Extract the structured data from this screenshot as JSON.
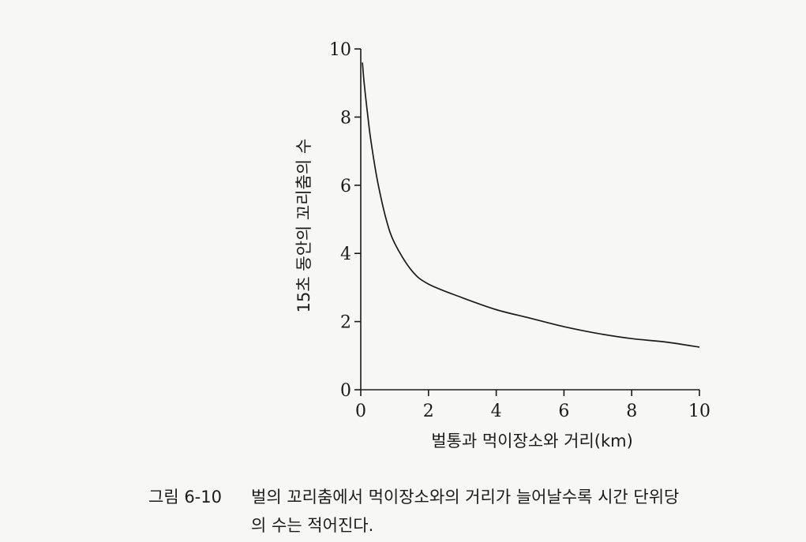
{
  "chart_data": {
    "type": "line",
    "xlabel": "벌통과 먹이장소와 거리(km)",
    "ylabel": "15초 동안의 꼬리춤의 수",
    "xlim": [
      0,
      10
    ],
    "ylim": [
      0,
      10
    ],
    "xticks": [
      "0",
      "2",
      "4",
      "6",
      "8",
      "10"
    ],
    "yticks": [
      "0",
      "2",
      "4",
      "6",
      "8",
      "10"
    ],
    "series": [
      {
        "x": [
          0.05,
          0.1,
          0.2,
          0.3,
          0.5,
          0.75,
          1.0,
          1.5,
          2.0,
          3.0,
          4.0,
          5.0,
          6.0,
          7.0,
          8.0,
          9.0,
          10.0
        ],
        "values": [
          9.6,
          9.0,
          8.1,
          7.3,
          6.1,
          5.0,
          4.3,
          3.5,
          3.1,
          2.7,
          2.35,
          2.1,
          1.85,
          1.65,
          1.5,
          1.4,
          1.25
        ]
      }
    ]
  },
  "caption": {
    "number": "그림 6-10",
    "line1": "벌의 꼬리춤에서 먹이장소와의 거리가 늘어날수록 시간 단위당",
    "line2": "의 수는 적어진다."
  }
}
